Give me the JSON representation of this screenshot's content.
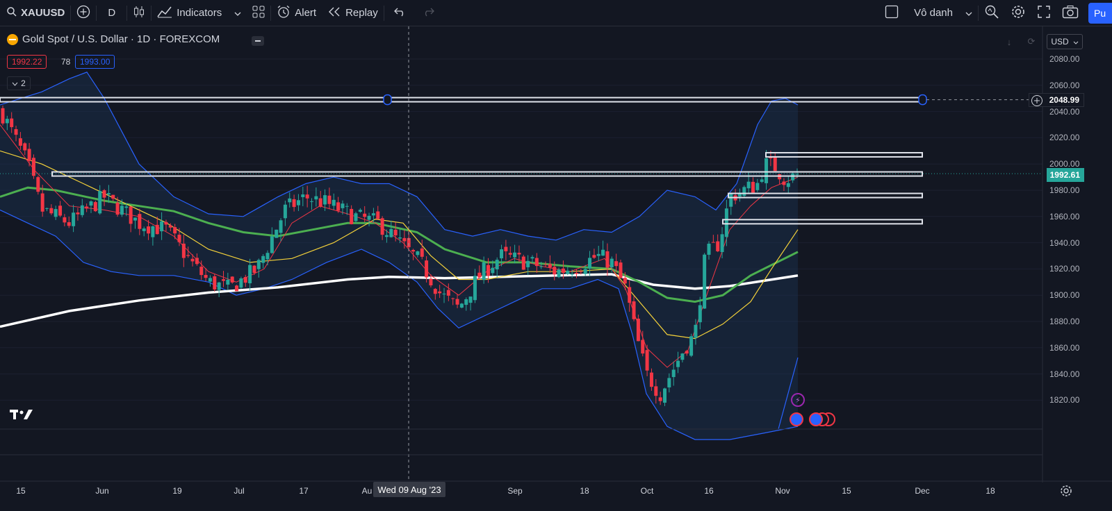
{
  "toolbar": {
    "symbol": "XAUUSD",
    "interval": "D",
    "indicators_label": "Indicators",
    "alert_label": "Alert",
    "replay_label": "Replay",
    "layout_name": "Vô danh",
    "publish_label": "Pu"
  },
  "legend": {
    "title": "Gold Spot / U.S. Dollar · 1D · FOREXCOM",
    "sell_price": "1992.22",
    "spread": "78",
    "buy_price": "1993.00",
    "indicators_count": "2"
  },
  "price_scale": {
    "currency": "USD",
    "labels": [
      "2080.00",
      "2060.00",
      "2040.00",
      "2020.00",
      "2000.00",
      "1980.00",
      "1960.00",
      "1940.00",
      "1920.00",
      "1900.00",
      "1880.00",
      "1860.00",
      "1840.00",
      "1820.00"
    ],
    "crosshair_price": "2048.99",
    "last_price": "1992.61"
  },
  "time_scale": {
    "labels": [
      "15",
      "Jun",
      "19",
      "Jul",
      "17",
      "Au",
      "Sep",
      "18",
      "Oct",
      "16",
      "Nov",
      "15",
      "Dec",
      "18"
    ],
    "crosshair_date": "Wed 09 Aug '23"
  },
  "colors": {
    "up": "#26a69a",
    "down": "#f23645",
    "bb": "#2962ff",
    "ema_fast": "#f23645",
    "ema_mid": "#f5d23a",
    "ma_green": "#4caf50",
    "ma_white": "#ffffff"
  },
  "icons": [
    "search-icon",
    "plus-icon",
    "candles-icon",
    "indicators-icon",
    "layouts-icon",
    "alert-icon",
    "replay-icon",
    "undo-icon",
    "redo-icon",
    "checkbox-icon",
    "chevron-down-icon",
    "quick-search-icon",
    "settings-icon",
    "fullscreen-icon",
    "camera-icon",
    "tradingview-logo",
    "flash-icon",
    "us-flag-icon"
  ]
}
